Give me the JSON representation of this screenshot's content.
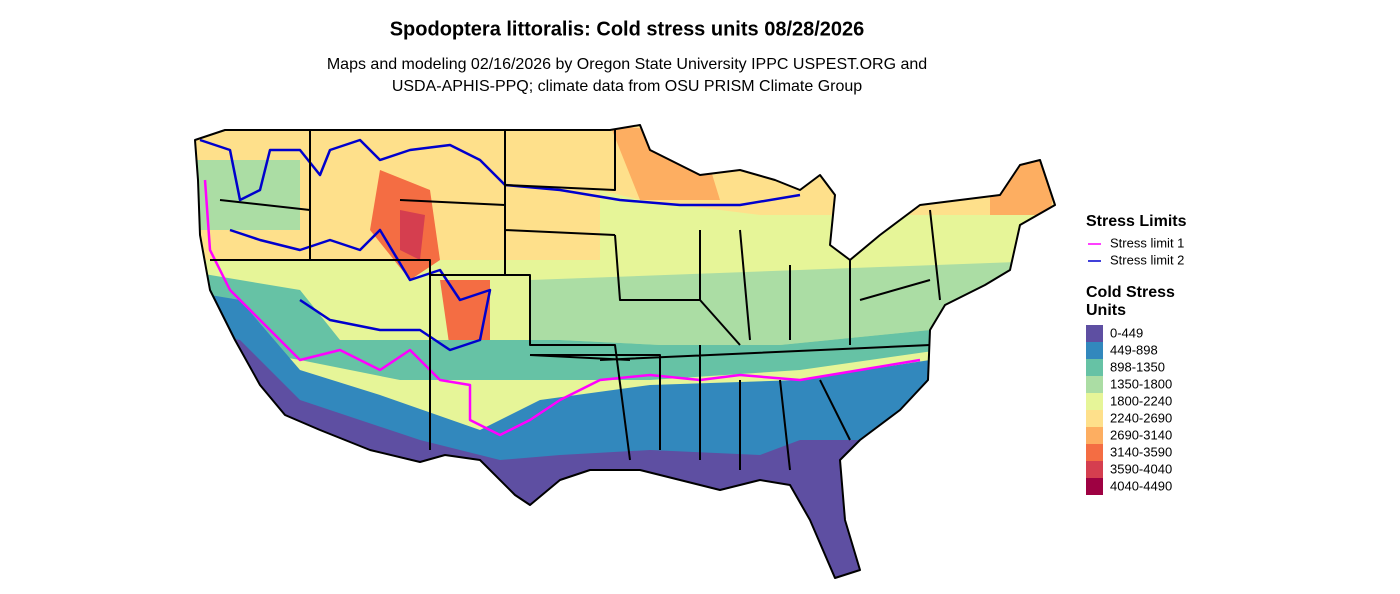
{
  "title": "Spodoptera littoralis: Cold stress units 08/28/2026",
  "subtitle_lines": [
    "Maps and modeling 02/16/2026 by Oregon State University IPPC USPEST.ORG and",
    "USDA-APHIS-PPQ; climate data from OSU PRISM Climate Group"
  ],
  "legends": [
    {
      "title": "Stress Limits",
      "items": [
        {
          "label": "Stress limit 1",
          "color": "#ff00ff"
        },
        {
          "label": "Stress limit 2",
          "color": "#0000cd"
        }
      ]
    },
    {
      "title_lines": [
        "Cold Stress",
        "Units"
      ],
      "items": [
        {
          "label": "0-449",
          "color": "#5e4fa2"
        },
        {
          "label": "449-898",
          "color": "#3288bd"
        },
        {
          "label": "898-1350",
          "color": "#66c2a5"
        },
        {
          "label": "1350-1800",
          "color": "#abdda4"
        },
        {
          "label": "1800-2240",
          "color": "#e6f598"
        },
        {
          "label": "2240-2690",
          "color": "#fee08b"
        },
        {
          "label": "2690-3140",
          "color": "#fdae61"
        },
        {
          "label": "3140-3590",
          "color": "#f46d43"
        },
        {
          "label": "3590-4040",
          "color": "#d53e4f"
        },
        {
          "label": "4040-4490",
          "color": "#9e0142"
        }
      ]
    }
  ]
}
